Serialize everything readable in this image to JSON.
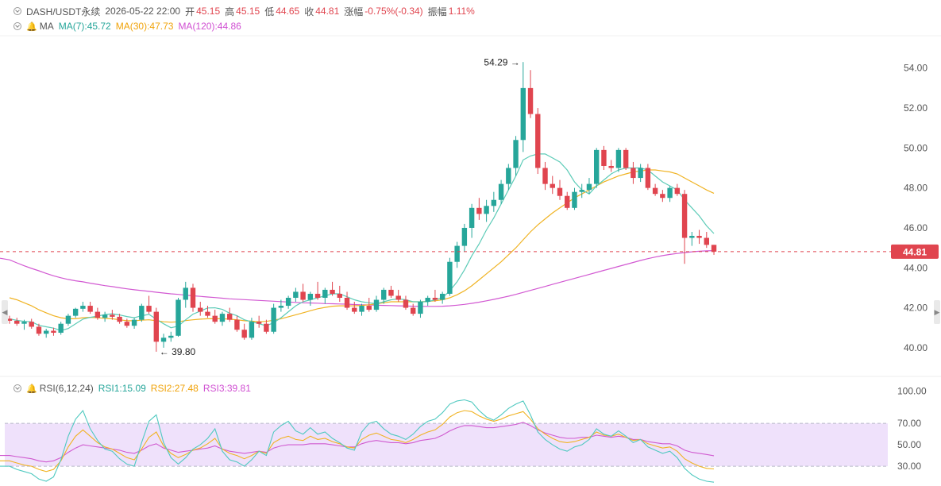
{
  "header": {
    "symbol": "DASH/USDT永续",
    "datetime": "2026-05-22 22:00",
    "open_label": "开",
    "open": "45.15",
    "high_label": "高",
    "high": "45.15",
    "low_label": "低",
    "low": "44.65",
    "close_label": "收",
    "close": "44.81",
    "change_label": "涨幅",
    "change": "-0.75%(-0.34)",
    "amplitude_label": "振幅",
    "amplitude": "1.11%"
  },
  "ma_legend": {
    "label": "MA",
    "ma7": "MA(7):45.72",
    "ma30": "MA(30):47.73",
    "ma120": "MA(120):44.86"
  },
  "rsi_legend": {
    "label": "RSI(6,12,24)",
    "rsi1": "RSI1:15.09",
    "rsi2": "RSI2:27.48",
    "rsi3": "RSI3:39.81"
  },
  "colors": {
    "up": "#26a69a",
    "down": "#e0454f",
    "ma7": "#5ccbb7",
    "ma30": "#f0b323",
    "ma120": "#d259d2",
    "rsi1": "#4fc9c0",
    "rsi2": "#f0b323",
    "rsi3": "#d05ad0",
    "rsi_band": "#efe1fb"
  },
  "chart_data": [
    {
      "type": "candlestick",
      "y_ticks": [
        "54.00",
        "52.00",
        "50.00",
        "48.00",
        "46.00",
        "44.00",
        "42.00",
        "40.00"
      ],
      "ylim": [
        39.2,
        55.5
      ],
      "last_price": 44.81,
      "last_price_label": "44.81",
      "max_marker": {
        "index": 70,
        "value": 54.29,
        "label": "54.29"
      },
      "min_marker": {
        "index": 20,
        "value": 39.8,
        "label": "39.80"
      },
      "ohlc": [
        [
          41.45,
          41.6,
          41.2,
          41.35
        ],
        [
          41.35,
          41.5,
          41.1,
          41.2
        ],
        [
          41.2,
          41.4,
          40.9,
          41.3
        ],
        [
          41.3,
          41.45,
          40.95,
          41.05
        ],
        [
          41.05,
          41.2,
          40.6,
          40.7
        ],
        [
          40.7,
          40.95,
          40.5,
          40.85
        ],
        [
          40.85,
          41.0,
          40.6,
          40.75
        ],
        [
          40.75,
          41.3,
          40.65,
          41.2
        ],
        [
          41.2,
          41.7,
          41.1,
          41.6
        ],
        [
          41.6,
          42.0,
          41.5,
          41.95
        ],
        [
          41.95,
          42.3,
          41.8,
          42.1
        ],
        [
          42.1,
          42.3,
          41.7,
          41.8
        ],
        [
          41.8,
          42.0,
          41.4,
          41.5
        ],
        [
          41.5,
          41.8,
          41.3,
          41.65
        ],
        [
          41.65,
          41.9,
          41.4,
          41.55
        ],
        [
          41.55,
          41.7,
          41.2,
          41.3
        ],
        [
          41.3,
          41.45,
          41.0,
          41.1
        ],
        [
          41.1,
          41.5,
          40.95,
          41.4
        ],
        [
          41.4,
          42.2,
          41.3,
          42.1
        ],
        [
          42.1,
          42.6,
          41.7,
          41.8
        ],
        [
          41.8,
          42.0,
          39.8,
          40.3
        ],
        [
          40.3,
          40.7,
          40.0,
          40.5
        ],
        [
          40.5,
          40.8,
          40.3,
          40.6
        ],
        [
          40.6,
          42.5,
          40.55,
          42.4
        ],
        [
          42.4,
          43.3,
          42.0,
          43.0
        ],
        [
          43.0,
          43.2,
          41.8,
          42.0
        ],
        [
          42.0,
          42.3,
          41.6,
          41.8
        ],
        [
          41.8,
          42.1,
          41.5,
          41.6
        ],
        [
          41.6,
          41.9,
          41.2,
          41.3
        ],
        [
          41.3,
          41.8,
          41.1,
          41.7
        ],
        [
          41.7,
          42.0,
          41.3,
          41.4
        ],
        [
          41.4,
          41.6,
          40.8,
          40.9
        ],
        [
          40.9,
          41.2,
          40.4,
          40.5
        ],
        [
          40.5,
          41.5,
          40.4,
          41.3
        ],
        [
          41.3,
          41.6,
          41.0,
          41.2
        ],
        [
          41.2,
          41.4,
          40.7,
          40.8
        ],
        [
          40.8,
          42.2,
          40.7,
          42.0
        ],
        [
          42.0,
          42.4,
          41.8,
          42.1
        ],
        [
          42.1,
          42.6,
          41.95,
          42.5
        ],
        [
          42.5,
          43.0,
          42.3,
          42.8
        ],
        [
          42.8,
          43.2,
          42.3,
          42.4
        ],
        [
          42.4,
          42.8,
          42.1,
          42.7
        ],
        [
          42.7,
          43.3,
          42.4,
          42.5
        ],
        [
          42.5,
          43.0,
          42.2,
          42.9
        ],
        [
          42.9,
          43.3,
          42.6,
          42.7
        ],
        [
          42.7,
          43.1,
          42.3,
          42.5
        ],
        [
          42.5,
          42.8,
          41.9,
          42.0
        ],
        [
          42.0,
          42.3,
          41.7,
          41.8
        ],
        [
          41.8,
          42.2,
          41.6,
          42.1
        ],
        [
          42.1,
          42.5,
          41.8,
          41.9
        ],
        [
          41.9,
          42.6,
          41.8,
          42.4
        ],
        [
          42.4,
          43.0,
          42.2,
          42.9
        ],
        [
          42.9,
          43.1,
          42.5,
          42.6
        ],
        [
          42.6,
          42.9,
          42.3,
          42.4
        ],
        [
          42.4,
          42.6,
          41.9,
          42.0
        ],
        [
          42.0,
          42.2,
          41.6,
          41.7
        ],
        [
          41.7,
          42.4,
          41.5,
          42.3
        ],
        [
          42.3,
          42.6,
          42.1,
          42.5
        ],
        [
          42.5,
          42.9,
          42.3,
          42.4
        ],
        [
          42.4,
          42.8,
          42.2,
          42.7
        ],
        [
          42.7,
          44.5,
          42.6,
          44.3
        ],
        [
          44.3,
          45.3,
          44.0,
          45.1
        ],
        [
          45.1,
          46.2,
          44.8,
          46.0
        ],
        [
          46.0,
          47.2,
          45.5,
          47.0
        ],
        [
          47.0,
          47.5,
          46.4,
          46.7
        ],
        [
          46.7,
          47.4,
          46.3,
          47.1
        ],
        [
          47.1,
          47.8,
          46.8,
          47.4
        ],
        [
          47.4,
          48.4,
          47.2,
          48.2
        ],
        [
          48.2,
          49.2,
          47.9,
          49.0
        ],
        [
          49.0,
          50.6,
          48.6,
          50.4
        ],
        [
          50.4,
          54.3,
          49.8,
          53.0
        ],
        [
          53.0,
          53.9,
          51.5,
          51.7
        ],
        [
          51.7,
          52.0,
          48.7,
          49.0
        ],
        [
          49.0,
          49.3,
          47.9,
          48.2
        ],
        [
          48.2,
          48.6,
          47.7,
          48.0
        ],
        [
          48.0,
          48.4,
          47.4,
          47.6
        ],
        [
          47.6,
          47.8,
          46.9,
          47.0
        ],
        [
          47.0,
          48.0,
          46.9,
          47.8
        ],
        [
          47.8,
          48.2,
          47.5,
          47.9
        ],
        [
          47.9,
          48.5,
          47.7,
          48.2
        ],
        [
          48.2,
          50.0,
          48.0,
          49.9
        ],
        [
          49.9,
          50.1,
          48.9,
          49.1
        ],
        [
          49.1,
          49.4,
          48.8,
          49.0
        ],
        [
          49.0,
          50.0,
          48.8,
          49.9
        ],
        [
          49.9,
          50.0,
          48.9,
          49.0
        ],
        [
          49.0,
          49.3,
          48.2,
          48.5
        ],
        [
          48.5,
          49.2,
          48.3,
          49.0
        ],
        [
          49.0,
          49.2,
          47.9,
          48.0
        ],
        [
          48.0,
          48.2,
          47.6,
          47.7
        ],
        [
          47.7,
          47.9,
          47.3,
          47.5
        ],
        [
          47.5,
          48.1,
          47.3,
          48.0
        ],
        [
          48.0,
          48.2,
          47.6,
          47.7
        ],
        [
          47.7,
          47.9,
          44.2,
          45.5
        ],
        [
          45.5,
          45.8,
          45.1,
          45.6
        ],
        [
          45.6,
          45.9,
          45.2,
          45.5
        ],
        [
          45.5,
          45.8,
          45.0,
          45.15
        ],
        [
          45.15,
          45.15,
          44.65,
          44.81
        ]
      ],
      "ma7": [
        41.45,
        41.37,
        41.32,
        41.3,
        41.12,
        41.05,
        40.98,
        40.86,
        40.96,
        41.2,
        41.43,
        41.52,
        41.58,
        41.66,
        41.7,
        41.64,
        41.56,
        41.5,
        41.6,
        41.67,
        41.43,
        41.2,
        41.0,
        41.08,
        41.4,
        41.68,
        41.83,
        41.99,
        42.0,
        41.92,
        41.73,
        41.6,
        41.4,
        41.3,
        41.2,
        41.1,
        41.25,
        41.5,
        41.8,
        42.1,
        42.3,
        42.4,
        42.5,
        42.6,
        42.7,
        42.7,
        42.55,
        42.4,
        42.3,
        42.25,
        42.2,
        42.3,
        42.4,
        42.45,
        42.4,
        42.3,
        42.3,
        42.3,
        42.4,
        42.5,
        42.85,
        43.3,
        43.9,
        44.6,
        45.2,
        45.9,
        46.5,
        47.2,
        47.9,
        48.6,
        49.4,
        49.6,
        49.7,
        49.7,
        49.5,
        49.3,
        48.9,
        48.3,
        47.9,
        47.7,
        48.1,
        48.4,
        48.7,
        48.9,
        49.0,
        49.0,
        49.0,
        48.9,
        48.6,
        48.3,
        48.1,
        47.9,
        47.4,
        47.0,
        46.6,
        46.1,
        45.72
      ],
      "ma30": [
        42.5,
        42.4,
        42.25,
        42.1,
        41.9,
        41.75,
        41.6,
        41.5,
        41.45,
        41.45,
        41.5,
        41.52,
        41.5,
        41.47,
        41.45,
        41.4,
        41.35,
        41.35,
        41.38,
        41.4,
        41.35,
        41.3,
        41.28,
        41.3,
        41.36,
        41.4,
        41.43,
        41.45,
        41.45,
        41.45,
        41.43,
        41.4,
        41.35,
        41.33,
        41.3,
        41.32,
        41.38,
        41.45,
        41.55,
        41.65,
        41.75,
        41.85,
        41.95,
        42.02,
        42.08,
        42.1,
        42.1,
        42.1,
        42.12,
        42.15,
        42.2,
        42.25,
        42.3,
        42.3,
        42.3,
        42.3,
        42.3,
        42.32,
        42.35,
        42.4,
        42.5,
        42.65,
        42.85,
        43.1,
        43.4,
        43.7,
        44.0,
        44.3,
        44.65,
        45.0,
        45.4,
        45.8,
        46.15,
        46.45,
        46.75,
        47.0,
        47.25,
        47.5,
        47.7,
        47.9,
        48.1,
        48.3,
        48.45,
        48.6,
        48.7,
        48.8,
        48.85,
        48.9,
        48.9,
        48.85,
        48.8,
        48.7,
        48.5,
        48.3,
        48.1,
        47.9,
        47.73
      ],
      "ma120": [
        44.4,
        44.25,
        44.1,
        43.97,
        43.85,
        43.72,
        43.6,
        43.5,
        43.42,
        43.35,
        43.3,
        43.23,
        43.17,
        43.11,
        43.06,
        43.0,
        42.95,
        42.9,
        42.86,
        42.82,
        42.78,
        42.74,
        42.7,
        42.67,
        42.63,
        42.6,
        42.57,
        42.54,
        42.51,
        42.48,
        42.45,
        42.43,
        42.41,
        42.39,
        42.37,
        42.35,
        42.33,
        42.31,
        42.29,
        42.27,
        42.25,
        42.24,
        42.23,
        42.21,
        42.2,
        42.19,
        42.18,
        42.16,
        42.15,
        42.14,
        42.13,
        42.12,
        42.11,
        42.1,
        42.09,
        42.08,
        42.07,
        42.07,
        42.07,
        42.08,
        42.1,
        42.13,
        42.17,
        42.22,
        42.28,
        42.35,
        42.42,
        42.5,
        42.58,
        42.67,
        42.77,
        42.87,
        42.97,
        43.07,
        43.17,
        43.27,
        43.37,
        43.47,
        43.57,
        43.67,
        43.77,
        43.87,
        43.97,
        44.07,
        44.17,
        44.27,
        44.37,
        44.46,
        44.54,
        44.61,
        44.67,
        44.72,
        44.76,
        44.8,
        44.83,
        44.85,
        44.86
      ]
    },
    {
      "type": "line",
      "y_ticks": [
        "100.00",
        "70.00",
        "50.00",
        "30.00"
      ],
      "ylim": [
        13,
        105
      ],
      "band": [
        30,
        70
      ],
      "series": [
        {
          "name": "RSI1",
          "values": [
            30,
            27,
            25,
            23,
            18,
            16,
            20,
            36,
            58,
            74,
            82,
            65,
            54,
            46,
            44,
            37,
            32,
            30,
            52,
            72,
            78,
            52,
            38,
            32,
            38,
            46,
            50,
            56,
            65,
            44,
            36,
            34,
            30,
            36,
            44,
            40,
            62,
            68,
            72,
            63,
            60,
            66,
            60,
            62,
            56,
            52,
            47,
            45,
            62,
            70,
            72,
            65,
            60,
            58,
            55,
            60,
            67,
            72,
            74,
            80,
            88,
            91,
            92,
            90,
            82,
            76,
            73,
            78,
            84,
            88,
            91,
            78,
            62,
            55,
            50,
            46,
            44,
            48,
            50,
            55,
            65,
            60,
            58,
            63,
            58,
            52,
            55,
            48,
            45,
            42,
            44,
            38,
            28,
            22,
            18,
            16,
            15.09
          ]
        },
        {
          "name": "RSI2",
          "values": [
            35,
            33,
            31,
            30,
            27,
            25,
            27,
            35,
            48,
            58,
            64,
            58,
            52,
            48,
            46,
            42,
            38,
            36,
            46,
            57,
            62,
            49,
            42,
            38,
            41,
            45,
            47,
            51,
            56,
            46,
            42,
            40,
            37,
            40,
            44,
            42,
            52,
            56,
            58,
            55,
            54,
            58,
            55,
            56,
            53,
            51,
            48,
            47,
            55,
            59,
            61,
            58,
            55,
            54,
            52,
            55,
            59,
            62,
            64,
            69,
            76,
            80,
            82,
            81,
            77,
            74,
            72,
            74,
            77,
            79,
            81,
            74,
            65,
            60,
            56,
            53,
            52,
            53,
            55,
            57,
            62,
            59,
            58,
            60,
            57,
            54,
            55,
            51,
            49,
            47,
            48,
            44,
            37,
            33,
            30,
            28,
            27.48
          ]
        },
        {
          "name": "RSI3",
          "values": [
            40,
            39,
            38,
            37,
            35,
            34,
            35,
            38,
            43,
            47,
            50,
            49,
            48,
            47,
            46,
            45,
            43,
            42,
            45,
            49,
            51,
            47,
            45,
            43,
            44,
            45,
            46,
            47,
            49,
            46,
            44,
            43,
            42,
            43,
            44,
            43,
            47,
            49,
            50,
            50,
            50,
            51,
            51,
            51,
            50,
            49,
            48,
            48,
            51,
            53,
            54,
            53,
            52,
            52,
            51,
            52,
            54,
            55,
            56,
            59,
            63,
            66,
            68,
            68,
            67,
            66,
            66,
            67,
            68,
            69,
            71,
            68,
            64,
            61,
            59,
            57,
            56,
            56,
            57,
            57,
            59,
            58,
            57,
            58,
            57,
            55,
            55,
            53,
            52,
            51,
            51,
            49,
            45,
            43,
            42,
            41,
            39.81
          ]
        }
      ]
    }
  ]
}
